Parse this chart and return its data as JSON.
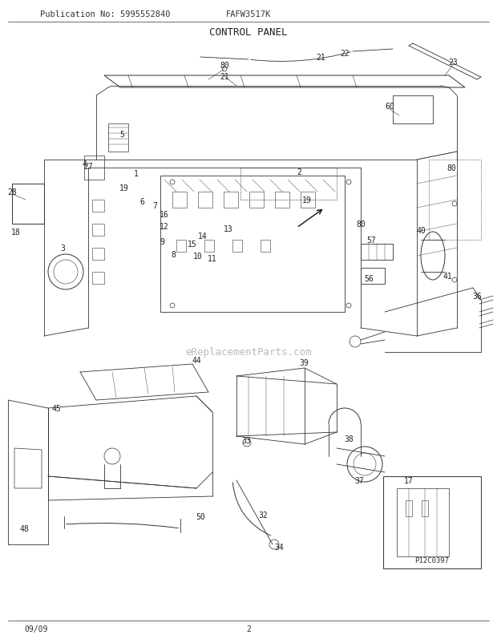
{
  "title": "CONTROL PANEL",
  "pub_no": "Publication No: 5995552840",
  "model": "FAFW3517K",
  "page": "2",
  "date": "09/09",
  "watermark": "eReplacementParts.com",
  "part_label": "P12C0397",
  "bg_color": "#ffffff",
  "line_color": "#333333",
  "label_color": "#222222",
  "watermark_color": "#bbbbbb",
  "title_fontsize": 9,
  "header_fontsize": 7.5,
  "label_fontsize": 7,
  "footer_fontsize": 7
}
